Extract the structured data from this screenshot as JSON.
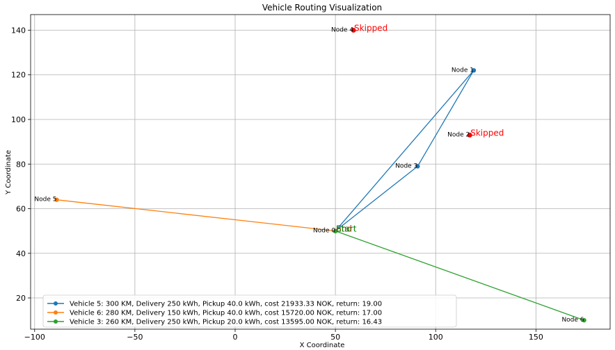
{
  "chart_data": {
    "type": "line",
    "title": "Vehicle Routing Visualization",
    "xlabel": "X Coordinate",
    "ylabel": "Y Coordinate",
    "xlim": [
      -102,
      187
    ],
    "ylim": [
      6,
      147
    ],
    "xticks": [
      -100,
      -50,
      0,
      50,
      100,
      150
    ],
    "xtick_labels": [
      "−100",
      "−50",
      "0",
      "50",
      "100",
      "150"
    ],
    "yticks": [
      20,
      40,
      60,
      80,
      100,
      120,
      140
    ],
    "ytick_labels": [
      "20",
      "40",
      "60",
      "80",
      "100",
      "120",
      "140"
    ],
    "grid": true,
    "legend_position": "lower-left",
    "series": [
      {
        "name": "Vehicle 5: 300 KM, Delivery 250 kWh, Pickup 40.0 kWh, cost 21933.33 NOK, return: 19.00",
        "color": "#1f77b4",
        "x": [
          50,
          119,
          91,
          50
        ],
        "y": [
          50,
          122,
          79,
          50
        ]
      },
      {
        "name": "Vehicle 6: 280 KM, Delivery 150 kWh, Pickup 40.0 kWh, cost 15720.00 NOK, return: 17.00",
        "color": "#ff7f0e",
        "x": [
          50,
          -89,
          50
        ],
        "y": [
          50,
          64,
          50
        ]
      },
      {
        "name": "Vehicle 3: 260 KM, Delivery 250 kWh, Pickup 20.0 kWh, cost 13595.00 NOK, return: 16.43",
        "color": "#2ca02c",
        "x": [
          50,
          174,
          50
        ],
        "y": [
          50,
          10,
          50
        ]
      }
    ],
    "nodes": [
      {
        "label": "Node 0",
        "x": 50,
        "y": 50
      },
      {
        "label": "Node 1",
        "x": 119,
        "y": 122
      },
      {
        "label": "Node 2",
        "x": 117,
        "y": 93
      },
      {
        "label": "Node 3",
        "x": 91,
        "y": 79
      },
      {
        "label": "Node 4",
        "x": 59,
        "y": 140
      },
      {
        "label": "Node 5",
        "x": -89,
        "y": 64
      },
      {
        "label": "Node 6",
        "x": 174,
        "y": 10
      }
    ],
    "skipped_nodes": [
      {
        "x": 59,
        "y": 140,
        "color": "#ff0000"
      },
      {
        "x": 117,
        "y": 93,
        "color": "#ff0000"
      }
    ],
    "annotations": [
      {
        "text": "Skipped",
        "x": 59,
        "y": 140,
        "color": "#ff0000"
      },
      {
        "text": "Skipped",
        "x": 117,
        "y": 93,
        "color": "#ff0000"
      },
      {
        "text": "End",
        "x": 50,
        "y": 50,
        "color": "#ff0000"
      },
      {
        "text": "Start",
        "x": 50,
        "y": 50,
        "color": "#008000"
      }
    ]
  }
}
